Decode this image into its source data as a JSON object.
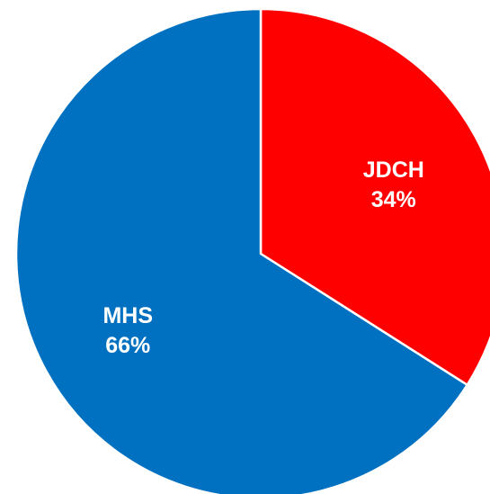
{
  "chart_data": {
    "type": "pie",
    "title": "",
    "slices": [
      {
        "label": "JDCH",
        "value": 34,
        "value_label": "34%",
        "color": "#FF0000"
      },
      {
        "label": "MHS",
        "value": 66,
        "value_label": "66%",
        "color": "#0070C0"
      }
    ],
    "start_angle_deg": 0,
    "direction": "clockwise",
    "slice_border_color": "#FFFFFF",
    "legend": "none",
    "data_labels": "inside"
  }
}
